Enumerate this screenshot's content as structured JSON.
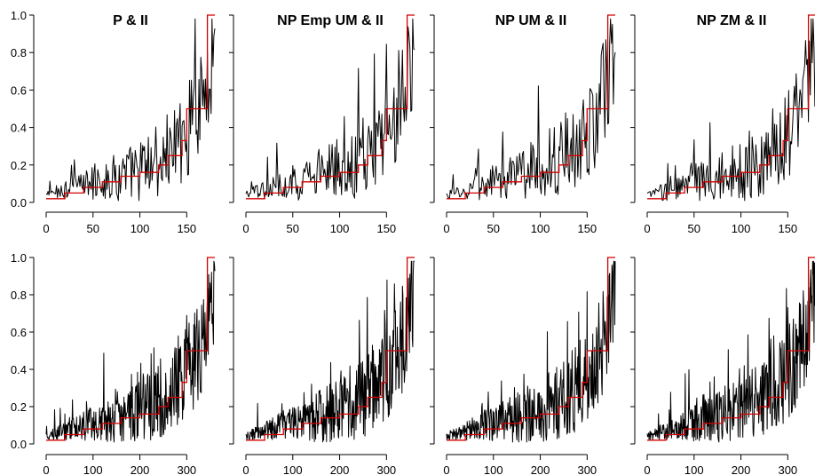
{
  "colors": {
    "background": "#ffffff",
    "observed_series": "#000000",
    "step_series": "#d40000"
  },
  "chart_data": [
    {
      "type": "line",
      "title": "P & II",
      "xlim": [
        0,
        180
      ],
      "ylim": [
        0,
        1
      ],
      "xticks": [
        0,
        50,
        100,
        150
      ],
      "yticks": [
        0.0,
        0.2,
        0.4,
        0.6,
        0.8,
        1.0
      ],
      "xtick_labels": [
        "0",
        "50",
        "100",
        "150"
      ],
      "ytick_labels": [
        "0.0",
        "0.2",
        "0.4",
        "0.6",
        "0.8",
        "1.0"
      ],
      "n_points": 180,
      "series": [
        {
          "role": "observed",
          "x": [
            0,
            20,
            40,
            60,
            80,
            100,
            120,
            140,
            150,
            160,
            170,
            175,
            180
          ],
          "y": [
            0.04,
            0.07,
            0.09,
            0.11,
            0.14,
            0.17,
            0.22,
            0.3,
            0.38,
            0.45,
            0.6,
            0.75,
            0.8
          ]
        },
        {
          "role": "step",
          "x": [
            0,
            20,
            40,
            60,
            80,
            100,
            120,
            130,
            145,
            150,
            165,
            172,
            180
          ],
          "y": [
            0.02,
            0.05,
            0.08,
            0.11,
            0.14,
            0.16,
            0.2,
            0.25,
            0.33,
            0.5,
            0.5,
            1.0,
            1.0
          ]
        }
      ]
    },
    {
      "type": "line",
      "title": "NP Emp UM & II",
      "xlim": [
        0,
        180
      ],
      "ylim": [
        0,
        1
      ],
      "xticks": [
        0,
        50,
        100,
        150
      ],
      "yticks": [
        0.0,
        0.2,
        0.4,
        0.6,
        0.8,
        1.0
      ],
      "xtick_labels": [
        "0",
        "50",
        "100",
        "150"
      ],
      "ytick_labels": [],
      "n_points": 180,
      "series": [
        {
          "role": "observed",
          "x": [
            0,
            20,
            40,
            60,
            80,
            100,
            120,
            140,
            150,
            160,
            170,
            175,
            180
          ],
          "y": [
            0.04,
            0.07,
            0.09,
            0.12,
            0.15,
            0.18,
            0.22,
            0.3,
            0.38,
            0.46,
            0.6,
            0.75,
            0.8
          ]
        },
        {
          "role": "step",
          "x": [
            0,
            20,
            40,
            60,
            80,
            100,
            120,
            130,
            145,
            150,
            165,
            172,
            180
          ],
          "y": [
            0.02,
            0.05,
            0.08,
            0.11,
            0.14,
            0.16,
            0.2,
            0.25,
            0.33,
            0.5,
            0.5,
            1.0,
            1.0
          ]
        }
      ]
    },
    {
      "type": "line",
      "title": "NP UM & II",
      "xlim": [
        0,
        180
      ],
      "ylim": [
        0,
        1
      ],
      "xticks": [
        0,
        50,
        100,
        150
      ],
      "yticks": [
        0.0,
        0.2,
        0.4,
        0.6,
        0.8,
        1.0
      ],
      "xtick_labels": [
        "0",
        "50",
        "100",
        "150"
      ],
      "ytick_labels": [],
      "n_points": 180,
      "series": [
        {
          "role": "observed",
          "x": [
            0,
            20,
            40,
            60,
            80,
            100,
            120,
            140,
            150,
            160,
            170,
            175,
            180
          ],
          "y": [
            0.04,
            0.06,
            0.09,
            0.12,
            0.15,
            0.18,
            0.23,
            0.31,
            0.38,
            0.46,
            0.6,
            0.75,
            0.8
          ]
        },
        {
          "role": "step",
          "x": [
            0,
            20,
            40,
            60,
            80,
            100,
            120,
            130,
            145,
            150,
            165,
            172,
            180
          ],
          "y": [
            0.02,
            0.05,
            0.08,
            0.11,
            0.14,
            0.16,
            0.2,
            0.25,
            0.33,
            0.5,
            0.5,
            1.0,
            1.0
          ]
        }
      ]
    },
    {
      "type": "line",
      "title": "NP ZM & II",
      "xlim": [
        0,
        180
      ],
      "ylim": [
        0,
        1
      ],
      "xticks": [
        0,
        50,
        100,
        150
      ],
      "yticks": [
        0.0,
        0.2,
        0.4,
        0.6,
        0.8,
        1.0
      ],
      "xtick_labels": [
        "0",
        "50",
        "100",
        "150"
      ],
      "ytick_labels": [],
      "n_points": 180,
      "series": [
        {
          "role": "observed",
          "x": [
            0,
            20,
            40,
            60,
            80,
            100,
            120,
            140,
            150,
            160,
            170,
            175,
            180
          ],
          "y": [
            0.04,
            0.06,
            0.09,
            0.12,
            0.15,
            0.18,
            0.22,
            0.3,
            0.38,
            0.46,
            0.6,
            0.75,
            0.8
          ]
        },
        {
          "role": "step",
          "x": [
            0,
            20,
            40,
            60,
            80,
            100,
            120,
            130,
            145,
            150,
            165,
            172,
            180
          ],
          "y": [
            0.02,
            0.05,
            0.08,
            0.11,
            0.14,
            0.16,
            0.2,
            0.25,
            0.33,
            0.5,
            0.5,
            1.0,
            1.0
          ]
        }
      ]
    },
    {
      "type": "line",
      "title": "",
      "xlim": [
        0,
        360
      ],
      "ylim": [
        0,
        1
      ],
      "xticks": [
        0,
        100,
        200,
        300
      ],
      "yticks": [
        0.0,
        0.2,
        0.4,
        0.6,
        0.8,
        1.0
      ],
      "xtick_labels": [
        "0",
        "100",
        "200",
        "300"
      ],
      "ytick_labels": [
        "0.0",
        "0.2",
        "0.4",
        "0.6",
        "0.8",
        "1.0"
      ],
      "n_points": 360,
      "series": [
        {
          "role": "observed",
          "x": [
            0,
            40,
            80,
            120,
            160,
            200,
            240,
            280,
            300,
            320,
            340,
            350,
            360
          ],
          "y": [
            0.04,
            0.07,
            0.1,
            0.12,
            0.15,
            0.18,
            0.23,
            0.3,
            0.38,
            0.46,
            0.58,
            0.72,
            0.78
          ]
        },
        {
          "role": "step",
          "x": [
            0,
            40,
            80,
            120,
            160,
            200,
            240,
            260,
            290,
            300,
            330,
            344,
            360
          ],
          "y": [
            0.02,
            0.05,
            0.08,
            0.11,
            0.14,
            0.16,
            0.2,
            0.25,
            0.33,
            0.5,
            0.5,
            1.0,
            1.0
          ]
        }
      ]
    },
    {
      "type": "line",
      "title": "",
      "xlim": [
        0,
        360
      ],
      "ylim": [
        0,
        1
      ],
      "xticks": [
        0,
        100,
        200,
        300
      ],
      "yticks": [
        0.0,
        0.2,
        0.4,
        0.6,
        0.8,
        1.0
      ],
      "xtick_labels": [
        "0",
        "100",
        "200",
        "300"
      ],
      "ytick_labels": [],
      "n_points": 360,
      "series": [
        {
          "role": "observed",
          "x": [
            0,
            40,
            80,
            120,
            160,
            200,
            240,
            280,
            300,
            320,
            340,
            350,
            360
          ],
          "y": [
            0.04,
            0.07,
            0.1,
            0.12,
            0.15,
            0.18,
            0.23,
            0.3,
            0.38,
            0.46,
            0.58,
            0.72,
            0.78
          ]
        },
        {
          "role": "step",
          "x": [
            0,
            40,
            80,
            120,
            160,
            200,
            240,
            260,
            290,
            300,
            330,
            344,
            360
          ],
          "y": [
            0.02,
            0.05,
            0.08,
            0.11,
            0.14,
            0.16,
            0.2,
            0.25,
            0.33,
            0.5,
            0.5,
            1.0,
            1.0
          ]
        }
      ]
    },
    {
      "type": "line",
      "title": "",
      "xlim": [
        0,
        360
      ],
      "ylim": [
        0,
        1
      ],
      "xticks": [
        0,
        100,
        200,
        300
      ],
      "yticks": [
        0.0,
        0.2,
        0.4,
        0.6,
        0.8,
        1.0
      ],
      "xtick_labels": [
        "0",
        "100",
        "200",
        "300"
      ],
      "ytick_labels": [],
      "n_points": 360,
      "series": [
        {
          "role": "observed",
          "x": [
            0,
            40,
            80,
            120,
            160,
            200,
            240,
            280,
            300,
            320,
            340,
            350,
            360
          ],
          "y": [
            0.04,
            0.07,
            0.1,
            0.12,
            0.15,
            0.18,
            0.23,
            0.3,
            0.38,
            0.46,
            0.58,
            0.72,
            0.78
          ]
        },
        {
          "role": "step",
          "x": [
            0,
            40,
            80,
            120,
            160,
            200,
            240,
            260,
            290,
            300,
            330,
            344,
            360
          ],
          "y": [
            0.02,
            0.05,
            0.08,
            0.11,
            0.14,
            0.16,
            0.2,
            0.25,
            0.33,
            0.5,
            0.5,
            1.0,
            1.0
          ]
        }
      ]
    },
    {
      "type": "line",
      "title": "",
      "xlim": [
        0,
        360
      ],
      "ylim": [
        0,
        1
      ],
      "xticks": [
        0,
        100,
        200,
        300
      ],
      "yticks": [
        0.0,
        0.2,
        0.4,
        0.6,
        0.8,
        1.0
      ],
      "xtick_labels": [
        "0",
        "100",
        "200",
        "300"
      ],
      "ytick_labels": [],
      "n_points": 360,
      "series": [
        {
          "role": "observed",
          "x": [
            0,
            40,
            80,
            120,
            160,
            200,
            240,
            280,
            300,
            320,
            340,
            350,
            360
          ],
          "y": [
            0.04,
            0.07,
            0.1,
            0.12,
            0.15,
            0.18,
            0.23,
            0.3,
            0.38,
            0.46,
            0.58,
            0.72,
            0.78
          ]
        },
        {
          "role": "step",
          "x": [
            0,
            40,
            80,
            120,
            160,
            200,
            240,
            260,
            290,
            300,
            330,
            344,
            360
          ],
          "y": [
            0.02,
            0.05,
            0.08,
            0.11,
            0.14,
            0.16,
            0.2,
            0.25,
            0.33,
            0.5,
            0.5,
            1.0,
            1.0
          ]
        }
      ]
    }
  ]
}
